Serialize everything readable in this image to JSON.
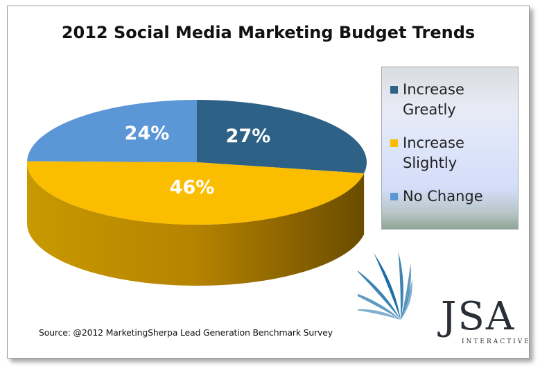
{
  "chart_data": {
    "type": "pie",
    "title": "2012 Social Media Marketing Budget Trends",
    "series": [
      {
        "name": "Increase Greatly",
        "value": 27,
        "label": "27%",
        "color": "#2e6186"
      },
      {
        "name": "Increase Slightly",
        "value": 46,
        "label": "46%",
        "color": "#fbbd00"
      },
      {
        "name": "No Change",
        "value": 24,
        "label": "24%",
        "color": "#5b96d6"
      }
    ],
    "legend_position": "right"
  },
  "legend": {
    "items": [
      {
        "line1": "Increase",
        "line2": "Greatly",
        "color": "#2e6186"
      },
      {
        "line1": "Increase",
        "line2": "Slightly",
        "color": "#fbbd00"
      },
      {
        "line1": "No Change",
        "line2": "",
        "color": "#5b96d6"
      }
    ]
  },
  "source": "Source: @2012 MarketingSherpa Lead Generation Benchmark Survey",
  "logo": {
    "text": "JSA",
    "subtext": "INTERACTIVE",
    "color": "#1b6fa6"
  }
}
